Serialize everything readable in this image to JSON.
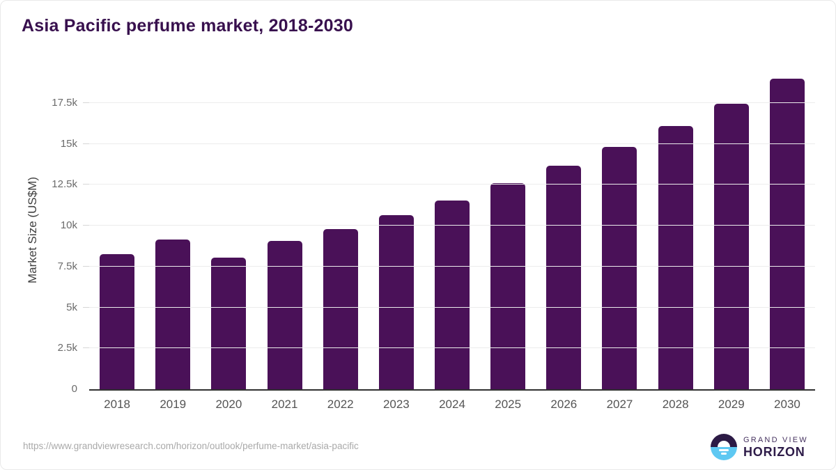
{
  "title": "Asia Pacific perfume market, 2018-2030",
  "chart_data": {
    "type": "bar",
    "title": "Asia Pacific perfume market, 2018-2030",
    "categories": [
      "2018",
      "2019",
      "2020",
      "2021",
      "2022",
      "2023",
      "2024",
      "2025",
      "2026",
      "2027",
      "2028",
      "2029",
      "2030"
    ],
    "values": [
      8250,
      9150,
      8050,
      9050,
      9800,
      10650,
      11550,
      12600,
      13650,
      14800,
      16100,
      17450,
      19000
    ],
    "xlabel": "",
    "ylabel": "Market Size (US$M)",
    "ylim": [
      0,
      19500
    ],
    "yticks": [
      0,
      2500,
      5000,
      7500,
      10000,
      12500,
      15000,
      17500
    ],
    "ytick_labels": [
      "0",
      "2.5k",
      "5k",
      "7.5k",
      "10k",
      "12.5k",
      "15k",
      "17.5k"
    ],
    "grid": true,
    "legend": false,
    "bar_color": "#4a1158"
  },
  "footer": {
    "source_url": "https://www.grandviewresearch.com/horizon/outlook/perfume-market/asia-pacific",
    "logo": {
      "line1": "GRAND VIEW",
      "line2": "HORIZON",
      "mark_icon": "sunrise-horizon-icon"
    }
  },
  "colors": {
    "bar": "#4a1158",
    "title_text": "#38104e",
    "axis_baseline": "#303030",
    "gridline": "#ececec",
    "logo_dark": "#2c1a45",
    "logo_blue": "#5ec8f2"
  }
}
